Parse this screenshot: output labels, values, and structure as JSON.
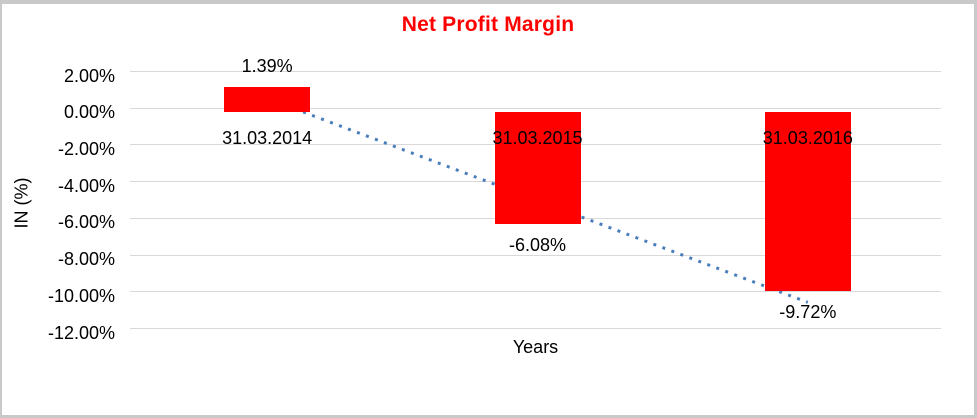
{
  "chart_data": {
    "type": "bar",
    "title": "Net Profit Margin",
    "xlabel": "Years",
    "ylabel": "IN (%)",
    "categories": [
      "31.03.2014",
      "31.03.2015",
      "31.03.2016"
    ],
    "values": [
      1.39,
      -6.08,
      -9.72
    ],
    "data_labels": [
      "1.39%",
      "-6.08%",
      "-9.72%"
    ],
    "yticks": [
      {
        "value": 2,
        "label": "2.00%"
      },
      {
        "value": 0,
        "label": "0.00%"
      },
      {
        "value": -2,
        "label": "-2.00%"
      },
      {
        "value": -4,
        "label": "-4.00%"
      },
      {
        "value": -6,
        "label": "-6.00%"
      },
      {
        "value": -8,
        "label": "-8.00%"
      },
      {
        "value": -10,
        "label": "-10.00%"
      },
      {
        "value": -12,
        "label": "-12.00%"
      }
    ],
    "ylim": [
      -12,
      2
    ],
    "grid": true,
    "legend": "none",
    "colors": {
      "bar": "#FF0000",
      "title": "#FF0000",
      "gridline": "#D9D9D9",
      "trendline": "#4A7EBB",
      "text": "#000000"
    },
    "trendline": {
      "type": "linear",
      "style": "dotted"
    }
  }
}
